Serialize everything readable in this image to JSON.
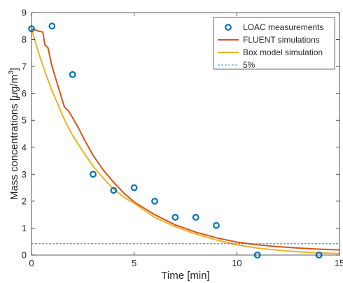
{
  "chart_data": {
    "type": "line",
    "xlabel": "Time [min]",
    "ylabel_parts": {
      "prefix": "Mass concentrations [",
      "mu": "μ",
      "middle": "g/m",
      "sup": "3",
      "suffix": "]"
    },
    "xlim": [
      0,
      15
    ],
    "ylim": [
      0,
      9
    ],
    "xticks": [
      "0",
      "5",
      "10",
      "15"
    ],
    "yticks": [
      "0",
      "1",
      "2",
      "3",
      "4",
      "5",
      "6",
      "7",
      "8",
      "9"
    ],
    "legend_position": "top-right",
    "grid": false,
    "series": [
      {
        "name": "LOAC measurements",
        "kind": "scatter",
        "marker": "circle",
        "color": "#0072BD",
        "x": [
          0,
          1,
          2,
          3,
          4,
          5,
          6,
          7,
          8,
          9,
          11,
          14
        ],
        "y": [
          8.4,
          8.5,
          6.7,
          3.0,
          2.4,
          2.5,
          2.0,
          1.4,
          1.4,
          1.1,
          0.0,
          0.0
        ]
      },
      {
        "name": "FLUENT simulations",
        "kind": "line",
        "color": "#D95319",
        "x": [
          0,
          0.2,
          0.4,
          0.55,
          0.65,
          0.8,
          1.0,
          1.2,
          1.4,
          1.6,
          1.8,
          2.0,
          2.3,
          2.6,
          3.0,
          3.5,
          4.0,
          4.5,
          5.0,
          6.0,
          7.0,
          8.0,
          9.0,
          10.0,
          11.0,
          12.0,
          13.0,
          14.0,
          15.0
        ],
        "y": [
          8.4,
          8.35,
          8.3,
          8.28,
          7.8,
          7.7,
          7.0,
          6.5,
          6.0,
          5.5,
          5.35,
          5.1,
          4.7,
          4.25,
          3.7,
          3.15,
          2.7,
          2.3,
          1.97,
          1.5,
          1.12,
          0.85,
          0.64,
          0.48,
          0.38,
          0.31,
          0.26,
          0.22,
          0.19
        ]
      },
      {
        "name": "Box model simulation",
        "kind": "line",
        "color": "#EDB120",
        "x": [
          0,
          0.25,
          0.5,
          0.75,
          1.0,
          1.25,
          1.5,
          1.75,
          2.0,
          2.5,
          3.0,
          3.5,
          4.0,
          4.5,
          5.0,
          6.0,
          7.0,
          8.0,
          9.0,
          10.0,
          11.0,
          12.0,
          13.0,
          14.0,
          15.0
        ],
        "y": [
          8.4,
          7.75,
          7.15,
          6.6,
          6.1,
          5.65,
          5.2,
          4.8,
          4.45,
          3.85,
          3.3,
          2.85,
          2.45,
          2.15,
          1.92,
          1.4,
          1.05,
          0.78,
          0.56,
          0.38,
          0.26,
          0.18,
          0.12,
          0.08,
          0.06
        ]
      },
      {
        "name": "5%",
        "kind": "hline",
        "style": "dashed",
        "color": "#0072BD",
        "y": 0.42
      }
    ]
  }
}
